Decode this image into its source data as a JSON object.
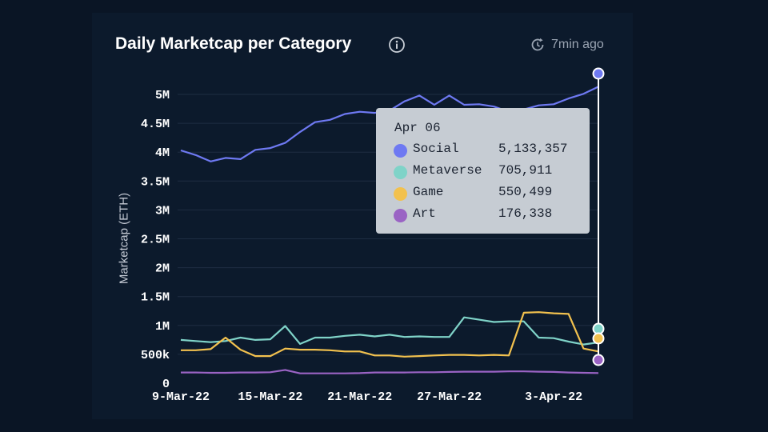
{
  "header": {
    "title": "Daily Marketcap per Category",
    "updated": "7min ago",
    "info_icon": "info-icon",
    "refresh_icon": "refresh-clock-icon"
  },
  "tooltip": {
    "date": "Apr 06",
    "rows": [
      {
        "name": "Social",
        "value": "5,133,357",
        "color": "#6e79f2"
      },
      {
        "name": "Metaverse",
        "value": "705,911",
        "color": "#7fd3c8"
      },
      {
        "name": "Game",
        "value": "550,499",
        "color": "#f2c14e"
      },
      {
        "name": "Art",
        "value": "176,338",
        "color": "#9a63c4"
      }
    ]
  },
  "chart_data": {
    "type": "line",
    "title": "Daily Marketcap per Category",
    "ylabel": "Marketcap (ETH)",
    "xlabel": "",
    "ylim": [
      0,
      5000000
    ],
    "y_ticks": [
      {
        "value": 0,
        "label": "0"
      },
      {
        "value": 500000,
        "label": "500k"
      },
      {
        "value": 1000000,
        "label": "1M"
      },
      {
        "value": 1500000,
        "label": "1.5M"
      },
      {
        "value": 2000000,
        "label": "2M"
      },
      {
        "value": 2500000,
        "label": "2.5M"
      },
      {
        "value": 3000000,
        "label": "3M"
      },
      {
        "value": 3500000,
        "label": "3.5M"
      },
      {
        "value": 4000000,
        "label": "4M"
      },
      {
        "value": 4500000,
        "label": "4.5M"
      },
      {
        "value": 5000000,
        "label": "5M"
      }
    ],
    "x": [
      "2022-03-09",
      "2022-03-10",
      "2022-03-11",
      "2022-03-12",
      "2022-03-13",
      "2022-03-14",
      "2022-03-15",
      "2022-03-16",
      "2022-03-17",
      "2022-03-18",
      "2022-03-19",
      "2022-03-20",
      "2022-03-21",
      "2022-03-22",
      "2022-03-23",
      "2022-03-24",
      "2022-03-25",
      "2022-03-26",
      "2022-03-27",
      "2022-03-28",
      "2022-03-29",
      "2022-03-30",
      "2022-03-31",
      "2022-04-01",
      "2022-04-02",
      "2022-04-03",
      "2022-04-04",
      "2022-04-05",
      "2022-04-06"
    ],
    "x_ticks": [
      {
        "index": 0,
        "label": "9-Mar-22"
      },
      {
        "index": 6,
        "label": "15-Mar-22"
      },
      {
        "index": 12,
        "label": "21-Mar-22"
      },
      {
        "index": 18,
        "label": "27-Mar-22"
      },
      {
        "index": 25,
        "label": "3-Apr-22"
      }
    ],
    "series": [
      {
        "name": "Social",
        "color": "#6e79f2",
        "values": [
          4030000,
          3950000,
          3840000,
          3900000,
          3880000,
          4040000,
          4070000,
          4160000,
          4350000,
          4520000,
          4560000,
          4660000,
          4700000,
          4680000,
          4720000,
          4880000,
          4980000,
          4820000,
          4980000,
          4820000,
          4830000,
          4790000,
          4700000,
          4740000,
          4810000,
          4830000,
          4930000,
          5010000,
          5133357
        ]
      },
      {
        "name": "Metaverse",
        "color": "#7fd3c8",
        "values": [
          750000,
          730000,
          710000,
          730000,
          790000,
          750000,
          760000,
          990000,
          680000,
          790000,
          790000,
          820000,
          840000,
          810000,
          840000,
          800000,
          810000,
          800000,
          800000,
          1140000,
          1100000,
          1060000,
          1070000,
          1070000,
          790000,
          780000,
          720000,
          670000,
          705911
        ]
      },
      {
        "name": "Game",
        "color": "#f2c14e",
        "values": [
          570000,
          570000,
          590000,
          790000,
          580000,
          470000,
          470000,
          600000,
          580000,
          580000,
          570000,
          550000,
          550000,
          480000,
          480000,
          460000,
          470000,
          480000,
          490000,
          490000,
          480000,
          490000,
          480000,
          1220000,
          1230000,
          1210000,
          1200000,
          600000,
          550499
        ]
      },
      {
        "name": "Art",
        "color": "#9a63c4",
        "values": [
          185000,
          185000,
          180000,
          180000,
          185000,
          185000,
          190000,
          230000,
          170000,
          170000,
          170000,
          170000,
          175000,
          185000,
          185000,
          185000,
          190000,
          190000,
          195000,
          200000,
          200000,
          200000,
          205000,
          205000,
          200000,
          195000,
          185000,
          180000,
          176338
        ]
      }
    ],
    "grid": true,
    "legend": "tooltip at top-right of plot"
  }
}
